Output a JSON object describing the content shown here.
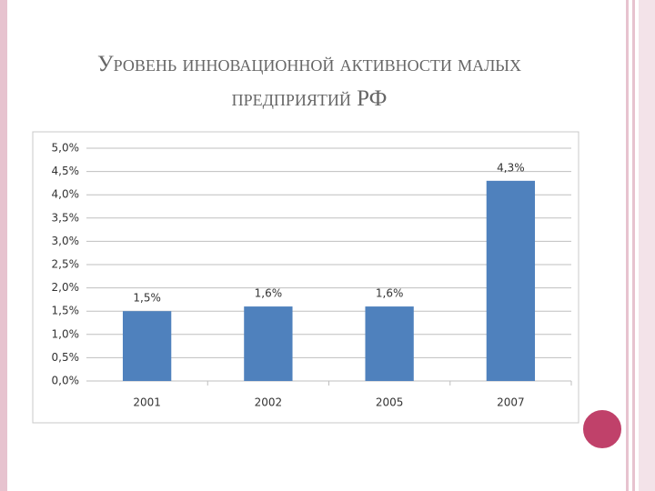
{
  "chart_data": {
    "type": "bar",
    "title": "Уровень инновационной активности малых предприятий РФ",
    "categories": [
      "2001",
      "2002",
      "2005",
      "2007"
    ],
    "values": [
      1.5,
      1.6,
      1.6,
      4.3
    ],
    "value_labels": [
      "1,5%",
      "1,6%",
      "1,6%",
      "4,3%"
    ],
    "color": "#4f81bd",
    "ylim": [
      0,
      5
    ],
    "yticks": [
      {
        "value": 0,
        "label": "0,0%"
      },
      {
        "value": 0.5,
        "label": "0,5%"
      },
      {
        "value": 1,
        "label": "1,0%"
      },
      {
        "value": 1.5,
        "label": "1,5%"
      },
      {
        "value": 2,
        "label": "2,0%"
      },
      {
        "value": 2.5,
        "label": "2,5%"
      },
      {
        "value": 3,
        "label": "3,0%"
      },
      {
        "value": 3.5,
        "label": "3,5%"
      },
      {
        "value": 4,
        "label": "4,0%"
      },
      {
        "value": 4.5,
        "label": "4,5%"
      },
      {
        "value": 5,
        "label": "5,0%"
      }
    ],
    "grid": true
  }
}
